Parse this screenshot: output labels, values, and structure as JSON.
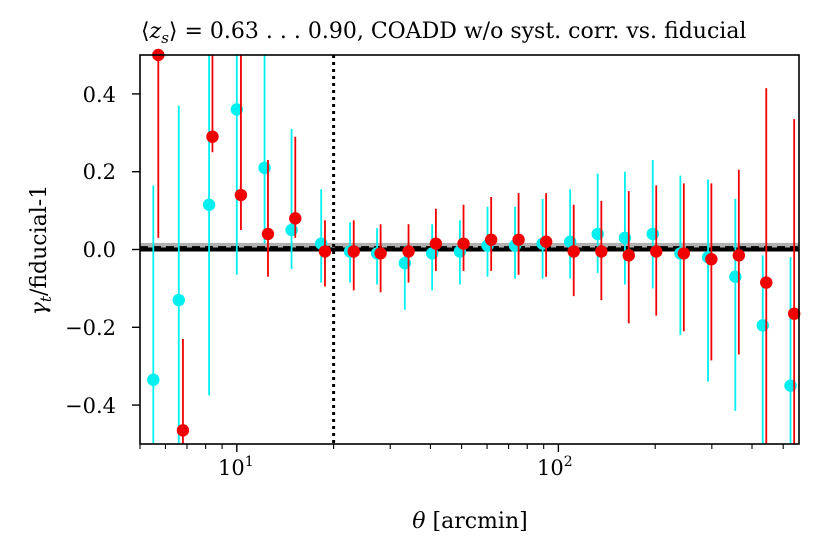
{
  "chart_data": {
    "type": "scatter",
    "title": "⟨z_s⟩ = 0.63 . . . 0.90, COADD w/o syst. corr. vs. fiducial",
    "title_parts": {
      "bracket_open": "⟨",
      "var": "z",
      "sub": "s",
      "bracket_close": "⟩",
      "equals": " = ",
      "range": "0.63 . . . 0.90, COADD w/o syst. corr. vs. fiducial"
    },
    "xlabel": "θ [arcmin]",
    "xlabel_parts": {
      "var": "θ",
      "unit": " [arcmin]"
    },
    "ylabel": "γ_t/fiducial-1",
    "ylabel_parts": {
      "var": "γ",
      "sub": "t",
      "rest": "/fiducial-1"
    },
    "xscale": "log",
    "xlim": [
      5.0,
      560.0
    ],
    "ylim": [
      -0.5,
      0.5
    ],
    "yticks": [
      -0.4,
      -0.2,
      0.0,
      0.2,
      0.4
    ],
    "ytick_labels": [
      "−0.4",
      "−0.2",
      "0.0",
      "0.2",
      "0.4"
    ],
    "xticks": [
      {
        "base": "10",
        "exp": "1",
        "value": 10
      },
      {
        "base": "10",
        "exp": "2",
        "value": 100
      }
    ],
    "vline": {
      "x": 20,
      "style": "dotted",
      "color": "#000000"
    },
    "hline": {
      "y": 0.0,
      "color": "#000000"
    },
    "hband": {
      "y": [
        -0.004,
        0.017
      ],
      "color": "#b0b0b0"
    },
    "hline_dashed": {
      "y": 0.006,
      "color": "#000000"
    },
    "series": [
      {
        "name": "cyan",
        "color": "#00f0f0",
        "x": [
          5.5,
          6.6,
          8.2,
          10.0,
          12.2,
          14.8,
          18.3,
          22.5,
          27.3,
          33.3,
          40.5,
          49.4,
          60.2,
          73.3,
          89.3,
          108.8,
          132.5,
          161.0,
          196.5,
          239.5,
          292.0,
          355.0,
          432.0,
          527.0
        ],
        "y": [
          -0.335,
          -0.13,
          0.115,
          0.36,
          0.21,
          0.05,
          0.015,
          -0.005,
          -0.01,
          -0.035,
          -0.01,
          -0.005,
          0.01,
          0.01,
          0.015,
          0.02,
          0.04,
          0.03,
          0.04,
          -0.01,
          -0.02,
          -0.07,
          -0.195,
          -0.35
        ],
        "err_lo": [
          -0.5,
          -0.5,
          -0.49,
          -0.425,
          -0.195,
          -0.1,
          -0.1,
          -0.08,
          -0.08,
          -0.12,
          -0.095,
          -0.085,
          -0.08,
          -0.085,
          -0.09,
          -0.095,
          -0.1,
          -0.12,
          -0.14,
          -0.21,
          -0.32,
          -0.345,
          -0.5,
          -0.5
        ],
        "err_hi": [
          0.5,
          0.5,
          0.5,
          0.5,
          0.5,
          0.26,
          0.14,
          0.075,
          0.065,
          0.045,
          0.075,
          0.08,
          0.1,
          0.1,
          0.115,
          0.135,
          0.155,
          0.17,
          0.19,
          0.2,
          0.2,
          0.2,
          0.18,
          0.33
        ]
      },
      {
        "name": "red",
        "color": "#f00000",
        "x": [
          5.7,
          6.8,
          8.4,
          10.3,
          12.5,
          15.2,
          18.8,
          23.1,
          28.0,
          34.2,
          41.6,
          50.7,
          61.8,
          75.2,
          91.6,
          111.6,
          136.0,
          165.5,
          201.5,
          245.5,
          299.0,
          364.0,
          443.0,
          541.0
        ],
        "y": [
          0.5,
          -0.465,
          0.29,
          0.14,
          0.04,
          0.08,
          -0.005,
          -0.005,
          -0.01,
          -0.005,
          0.015,
          0.015,
          0.025,
          0.025,
          0.02,
          -0.005,
          -0.005,
          -0.015,
          -0.005,
          -0.01,
          -0.025,
          -0.015,
          -0.085,
          -0.165
        ],
        "err_lo": [
          -0.47,
          -0.5,
          -0.04,
          -0.09,
          -0.11,
          -0.05,
          -0.09,
          -0.1,
          -0.1,
          -0.08,
          -0.07,
          -0.07,
          -0.08,
          -0.09,
          -0.09,
          -0.115,
          -0.125,
          -0.175,
          -0.165,
          -0.2,
          -0.26,
          -0.255,
          -0.5,
          -0.5
        ],
        "err_hi": [
          0.5,
          0.235,
          0.5,
          0.5,
          0.19,
          0.21,
          0.08,
          0.08,
          0.075,
          0.07,
          0.09,
          0.1,
          0.11,
          0.12,
          0.125,
          0.12,
          0.13,
          0.165,
          0.17,
          0.18,
          0.195,
          0.22,
          0.5,
          0.5
        ]
      }
    ]
  }
}
